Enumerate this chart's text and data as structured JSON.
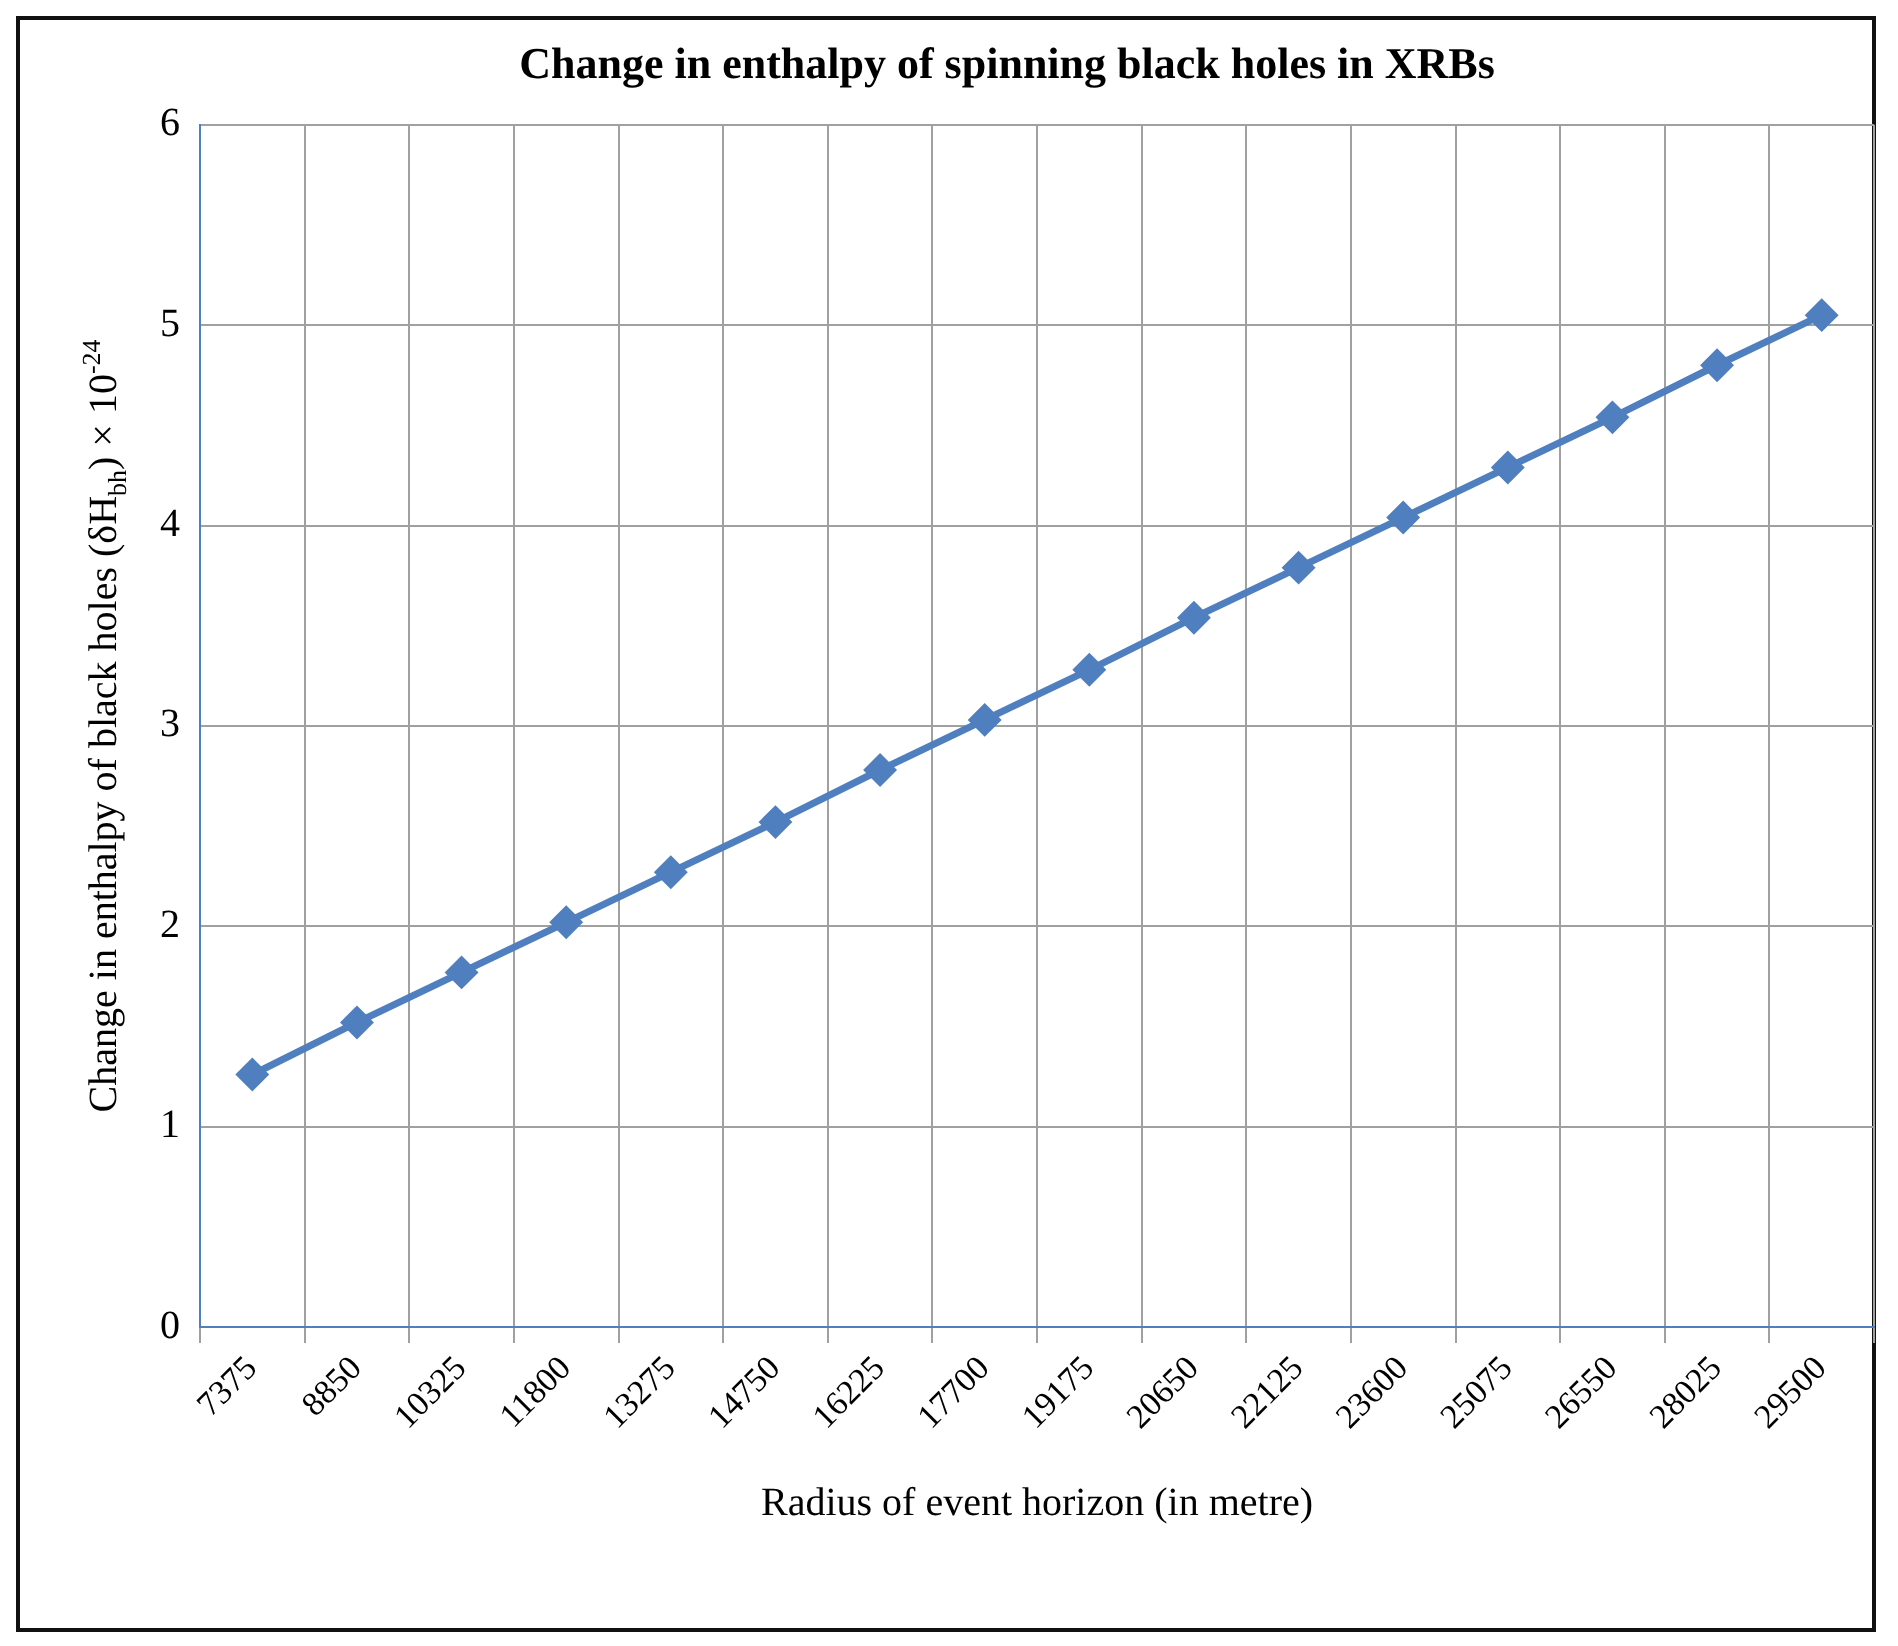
{
  "chart_data": {
    "type": "line",
    "title": "Change in enthalpy of spinning black holes in XRBs",
    "xlabel": "Radius of event horizon (in metre)",
    "ylabel": "Change in enthalpy of black holes (δH$_{bh}$) × 10$^{-24}$",
    "categories": [
      "7375",
      "8850",
      "10325",
      "11800",
      "13275",
      "14750",
      "16225",
      "17700",
      "19175",
      "20650",
      "22125",
      "23600",
      "25075",
      "26550",
      "28025",
      "29500"
    ],
    "series": [
      {
        "color": "#4f7fbf",
        "values": [
          1.26,
          1.52,
          1.77,
          2.02,
          2.27,
          2.52,
          2.78,
          3.03,
          3.28,
          3.54,
          3.79,
          4.04,
          4.29,
          4.54,
          4.8,
          5.05
        ]
      }
    ],
    "ylim": [
      0,
      6
    ],
    "yticks": [
      0,
      1,
      2,
      3,
      4,
      5,
      6
    ],
    "grid": true,
    "legend": false,
    "marker": "diamond",
    "line_style": "solid"
  }
}
